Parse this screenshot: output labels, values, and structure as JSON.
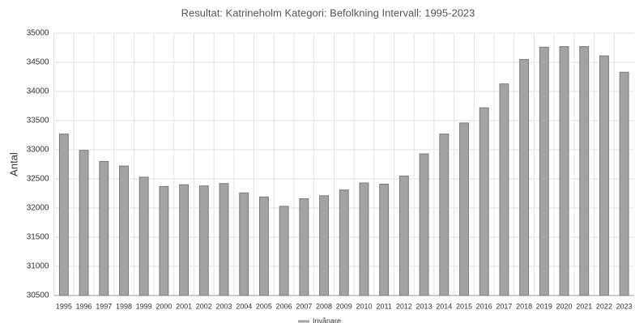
{
  "chart_data": {
    "type": "bar",
    "title": "Resultat: Katrineholm Kategori: Befolkning Intervall: 1995-2023",
    "y_label": "Antal",
    "categories": [
      "1995",
      "1996",
      "1997",
      "1998",
      "1999",
      "2000",
      "2001",
      "2002",
      "2003",
      "2004",
      "2005",
      "2006",
      "2007",
      "2008",
      "2009",
      "2010",
      "2011",
      "2012",
      "2013",
      "2014",
      "2015",
      "2016",
      "2017",
      "2018",
      "2019",
      "2020",
      "2021",
      "2022",
      "2023"
    ],
    "series": [
      {
        "name": "Invånare",
        "color": "#a3a3a3",
        "values": [
          33270,
          32990,
          32800,
          32720,
          32530,
          32370,
          32400,
          32380,
          32420,
          32260,
          32190,
          32030,
          32160,
          32210,
          32310,
          32430,
          32410,
          32550,
          32930,
          33270,
          33460,
          33720,
          34130,
          34550,
          34760,
          34770,
          34770,
          34610,
          34330
        ]
      }
    ],
    "ylim": [
      30500,
      35000
    ],
    "yticks": [
      30500,
      31000,
      31500,
      32000,
      32500,
      33000,
      33500,
      34000,
      34500,
      35000
    ],
    "grid": true
  }
}
